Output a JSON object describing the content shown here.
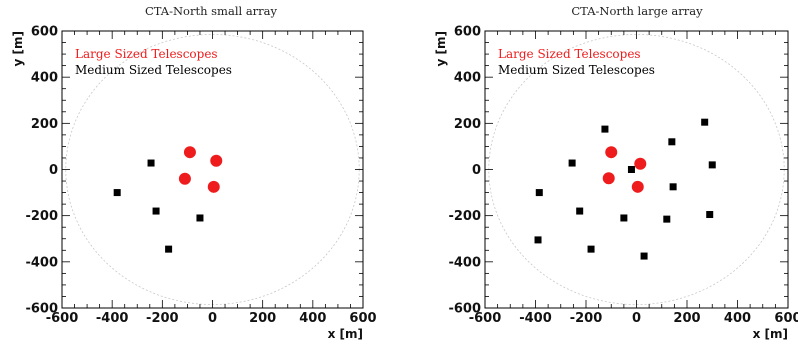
{
  "chart_data": [
    {
      "type": "scatter",
      "title": "CTA-North small array",
      "xlabel": "x [m]",
      "ylabel": "y [m]",
      "xlim": [
        -600,
        600
      ],
      "ylim": [
        -600,
        600
      ],
      "xticks": [
        "-600",
        "-400",
        "-200",
        "0",
        "200",
        "400",
        "600"
      ],
      "yticks": [
        "-600",
        "-400",
        "-200",
        "0",
        "200",
        "400",
        "600"
      ],
      "grid": false,
      "legend_position": "top-left",
      "boundary_circle_radius": 585,
      "series": [
        {
          "name": "Large Sized Telescopes",
          "color": "#ee1c1c",
          "marker": "circle",
          "points": [
            [
              -90,
              75
            ],
            [
              15,
              38
            ],
            [
              -110,
              -40
            ],
            [
              5,
              -75
            ]
          ]
        },
        {
          "name": "Medium Sized Telescopes",
          "color": "#000000",
          "marker": "square",
          "points": [
            [
              -245,
              28
            ],
            [
              -380,
              -100
            ],
            [
              -225,
              -180
            ],
            [
              -50,
              -210
            ],
            [
              -175,
              -345
            ]
          ]
        }
      ]
    },
    {
      "type": "scatter",
      "title": "CTA-North large array",
      "xlabel": "x [m]",
      "ylabel": "y [m]",
      "xlim": [
        -600,
        600
      ],
      "ylim": [
        -600,
        600
      ],
      "xticks": [
        "-600",
        "-400",
        "-200",
        "0",
        "200",
        "400",
        "600"
      ],
      "yticks": [
        "-600",
        "-400",
        "-200",
        "0",
        "200",
        "400",
        "600"
      ],
      "grid": false,
      "legend_position": "top-left",
      "boundary_circle_radius": 585,
      "series": [
        {
          "name": "Large Sized Telescopes",
          "color": "#ee1c1c",
          "marker": "circle",
          "points": [
            [
              -100,
              75
            ],
            [
              15,
              25
            ],
            [
              -110,
              -38
            ],
            [
              5,
              -75
            ]
          ]
        },
        {
          "name": "Medium Sized Telescopes",
          "color": "#000000",
          "marker": "square",
          "points": [
            [
              -125,
              175
            ],
            [
              -255,
              28
            ],
            [
              -385,
              -100
            ],
            [
              -225,
              -180
            ],
            [
              -50,
              -210
            ],
            [
              -20,
              0
            ],
            [
              140,
              120
            ],
            [
              270,
              205
            ],
            [
              300,
              20
            ],
            [
              145,
              -75
            ],
            [
              120,
              -215
            ],
            [
              290,
              -195
            ],
            [
              -390,
              -305
            ],
            [
              -180,
              -345
            ],
            [
              30,
              -375
            ]
          ]
        }
      ]
    }
  ]
}
